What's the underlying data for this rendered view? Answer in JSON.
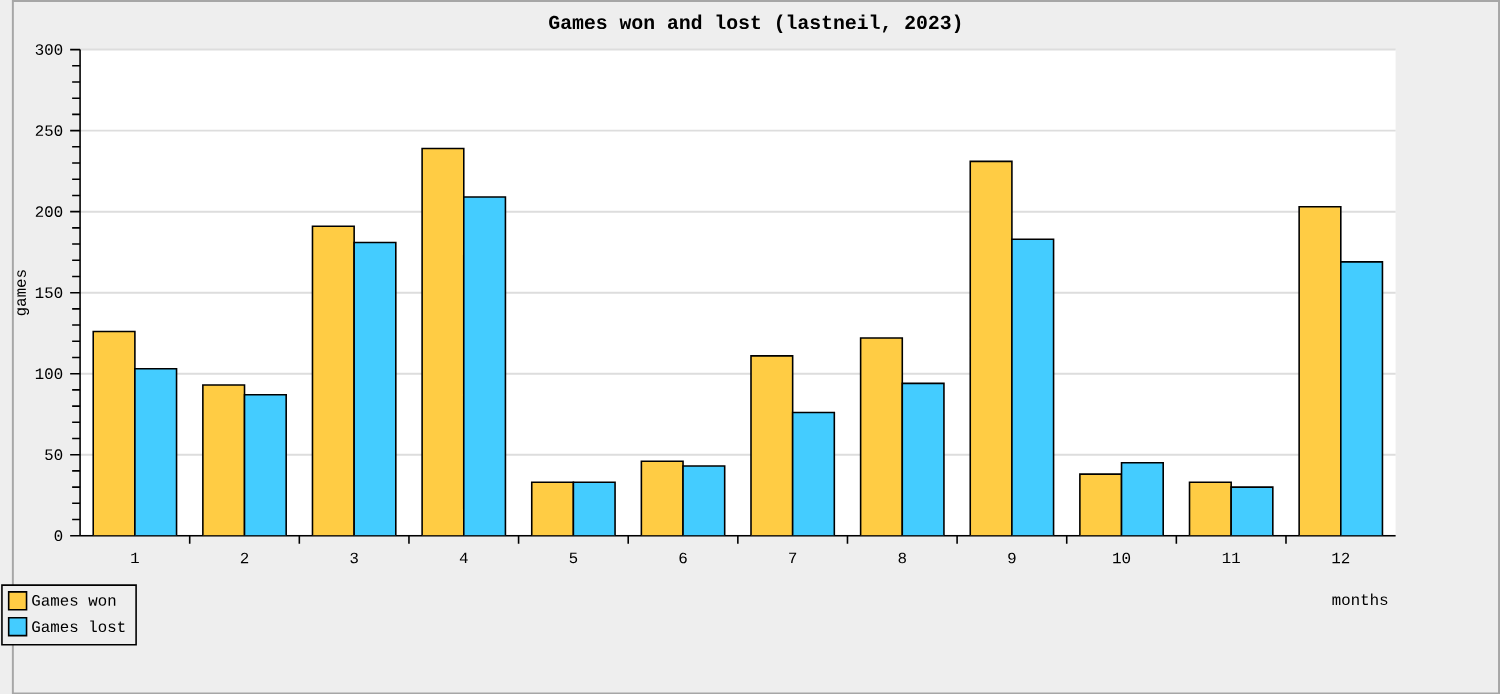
{
  "chart_data": {
    "type": "bar",
    "title": "Games won and lost (lastneil, 2023)",
    "xlabel": "months",
    "ylabel": "games",
    "categories": [
      "1",
      "2",
      "3",
      "4",
      "5",
      "6",
      "7",
      "8",
      "9",
      "10",
      "11",
      "12"
    ],
    "series": [
      {
        "name": "Games won",
        "color": "#ffcc44",
        "values": [
          126,
          93,
          191,
          239,
          33,
          46,
          111,
          122,
          231,
          38,
          33,
          203
        ]
      },
      {
        "name": "Games lost",
        "color": "#44ccff",
        "values": [
          103,
          87,
          181,
          209,
          33,
          43,
          76,
          94,
          183,
          45,
          30,
          169
        ]
      }
    ],
    "ylim": [
      0,
      300
    ],
    "yticks": [
      0,
      50,
      100,
      150,
      200,
      250,
      300
    ],
    "grid": "y",
    "legend": "bottom left"
  }
}
